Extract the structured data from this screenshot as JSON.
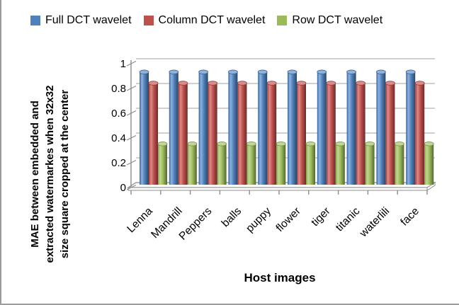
{
  "frame": {
    "border_color": "#9c9c9c",
    "background": "#ffffff"
  },
  "chart_data": {
    "type": "bar",
    "style_3d": "cylinder",
    "title": "",
    "xlabel": "Host images",
    "ylabel": "MAE between embedded and\nextracted watermarkes when 32x32\nsize square cropped at the center",
    "categories": [
      "Lenna",
      "Mandrill",
      "Peppers",
      "balls",
      "puppy",
      "flower",
      "tiger",
      "titanic",
      "waterlili",
      "face"
    ],
    "series": [
      {
        "name": "Full DCT wavelet",
        "color": "#4f81bd",
        "color_light": "#8fb2dc",
        "color_dark": "#38618f",
        "values": [
          0.91,
          0.91,
          0.91,
          0.91,
          0.91,
          0.91,
          0.91,
          0.91,
          0.91,
          0.91
        ]
      },
      {
        "name": "Column DCT wavelet",
        "color": "#c0504d",
        "color_light": "#da8d8b",
        "color_dark": "#943e3b",
        "values": [
          0.82,
          0.82,
          0.82,
          0.82,
          0.82,
          0.82,
          0.82,
          0.82,
          0.82,
          0.82
        ]
      },
      {
        "name": "Row DCT wavelet",
        "color": "#9bbb59",
        "color_light": "#c2d59a",
        "color_dark": "#7a9543",
        "values": [
          0.33,
          0.33,
          0.33,
          0.33,
          0.33,
          0.33,
          0.33,
          0.33,
          0.33,
          0.33
        ]
      }
    ],
    "ylim": [
      0,
      1
    ],
    "yticks": [
      0,
      0.2,
      0.4,
      0.6,
      0.8,
      1
    ],
    "ytick_labels": [
      "0",
      "0.2",
      "0.4",
      "0.6",
      "0.8",
      "1"
    ],
    "grid": true,
    "legend_position": "top",
    "axis_color": "#8c8c8c",
    "grid_color": "#b3b3b3",
    "text_color": "#000000"
  }
}
